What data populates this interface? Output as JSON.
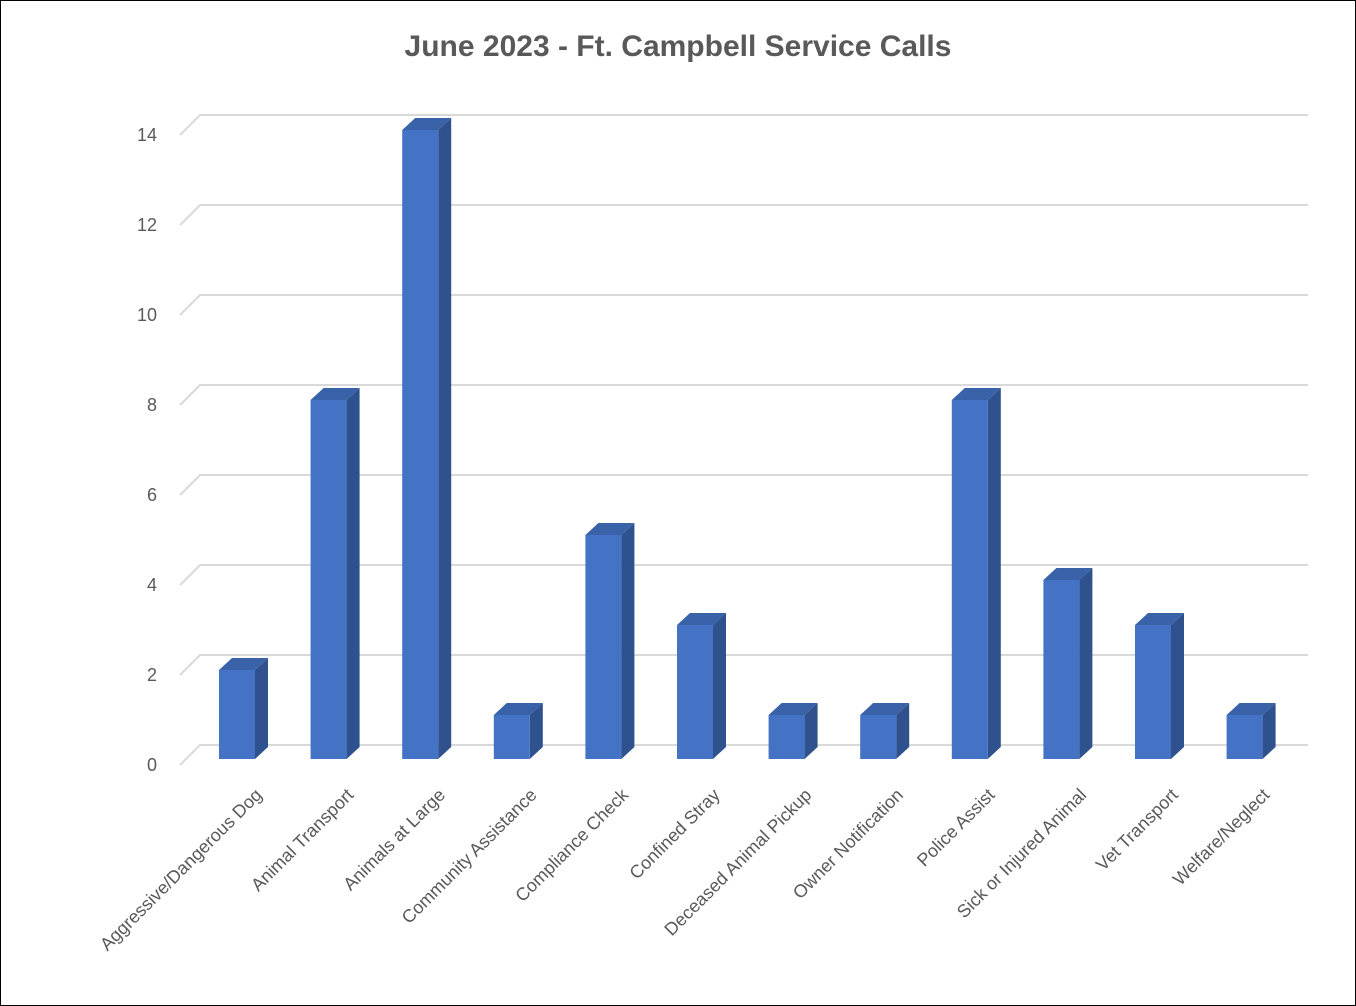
{
  "chart_data": {
    "type": "bar",
    "title": "June 2023 - Ft. Campbell Service Calls",
    "xlabel": "",
    "ylabel": "",
    "categories": [
      "Aggressive/Dangerous Dog",
      "Animal Transport",
      "Animals at Large",
      "Community Assistance",
      "Compliance Check",
      "Confined Stray",
      "Deceased Animal Pickup",
      "Owner Notification",
      "Police Assist",
      "Sick or Injured Animal",
      "Vet Transport",
      "Welfare/Neglect"
    ],
    "values": [
      2,
      8,
      14,
      1,
      5,
      3,
      1,
      1,
      8,
      4,
      3,
      1
    ],
    "ylim": [
      0,
      14
    ],
    "yticks": [
      0,
      2,
      4,
      6,
      8,
      10,
      12,
      14
    ],
    "grid": true,
    "legend": "none",
    "bar_style": "3d-column",
    "colors": {
      "bar_front": "#4472C4",
      "bar_side": "#2F528F",
      "bar_top": "#3A62A8",
      "grid": "#D9D9D9",
      "text": "#595959"
    }
  }
}
